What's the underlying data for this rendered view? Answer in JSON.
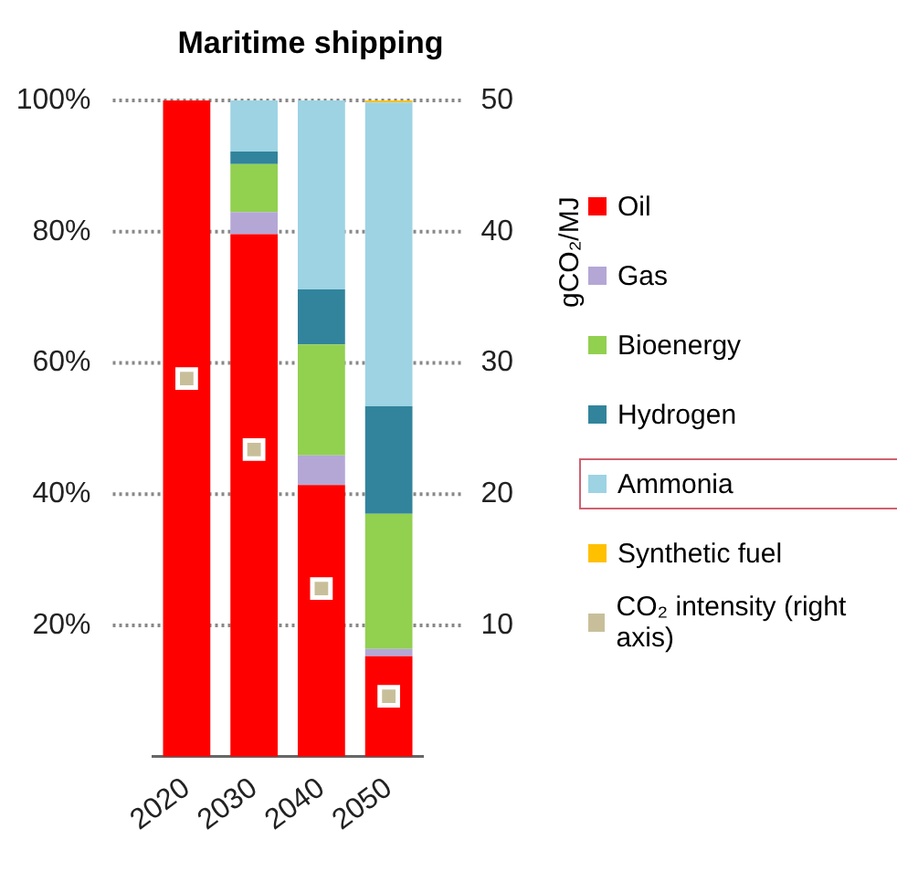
{
  "chart_data": {
    "type": "bar",
    "title": "Maritime shipping",
    "y2label": "gCO₂/MJ",
    "categories": [
      "2020",
      "2030",
      "2040",
      "2050"
    ],
    "stacked": true,
    "series": [
      {
        "name": "Oil",
        "color": "#ff0000",
        "values": [
          100,
          79.6,
          41.4,
          15.3
        ]
      },
      {
        "name": "Gas",
        "color": "#b4a7d6",
        "values": [
          0,
          3.4,
          4.5,
          1.1
        ]
      },
      {
        "name": "Bioenergy",
        "color": "#92d050",
        "values": [
          0,
          7.3,
          16.9,
          20.6
        ]
      },
      {
        "name": "Hydrogen",
        "color": "#31849b",
        "values": [
          0,
          1.9,
          8.4,
          16.4
        ]
      },
      {
        "name": "Ammonia",
        "color": "#9dd3e3",
        "values": [
          0,
          7.8,
          28.8,
          46.3
        ]
      },
      {
        "name": "Synthetic fuel",
        "color": "#ffc000",
        "values": [
          0,
          0,
          0,
          0.3
        ]
      },
      {
        "name": "CO₂ intensity (right axis)",
        "type": "scatter",
        "axis": "y2",
        "color": "#c8bf9a",
        "values": [
          28.8,
          23.4,
          12.8,
          4.6
        ]
      }
    ],
    "ylim": [
      0,
      100
    ],
    "yticks": [
      {
        "value": 20,
        "label": "20%"
      },
      {
        "value": 40,
        "label": "40%"
      },
      {
        "value": 60,
        "label": "60%"
      },
      {
        "value": 80,
        "label": "80%"
      },
      {
        "value": 100,
        "label": "100%"
      }
    ],
    "y2lim": [
      0,
      50
    ],
    "y2ticks": [
      10,
      20,
      30,
      40,
      50
    ],
    "grid": "y",
    "legend": "right",
    "marker": "square"
  }
}
